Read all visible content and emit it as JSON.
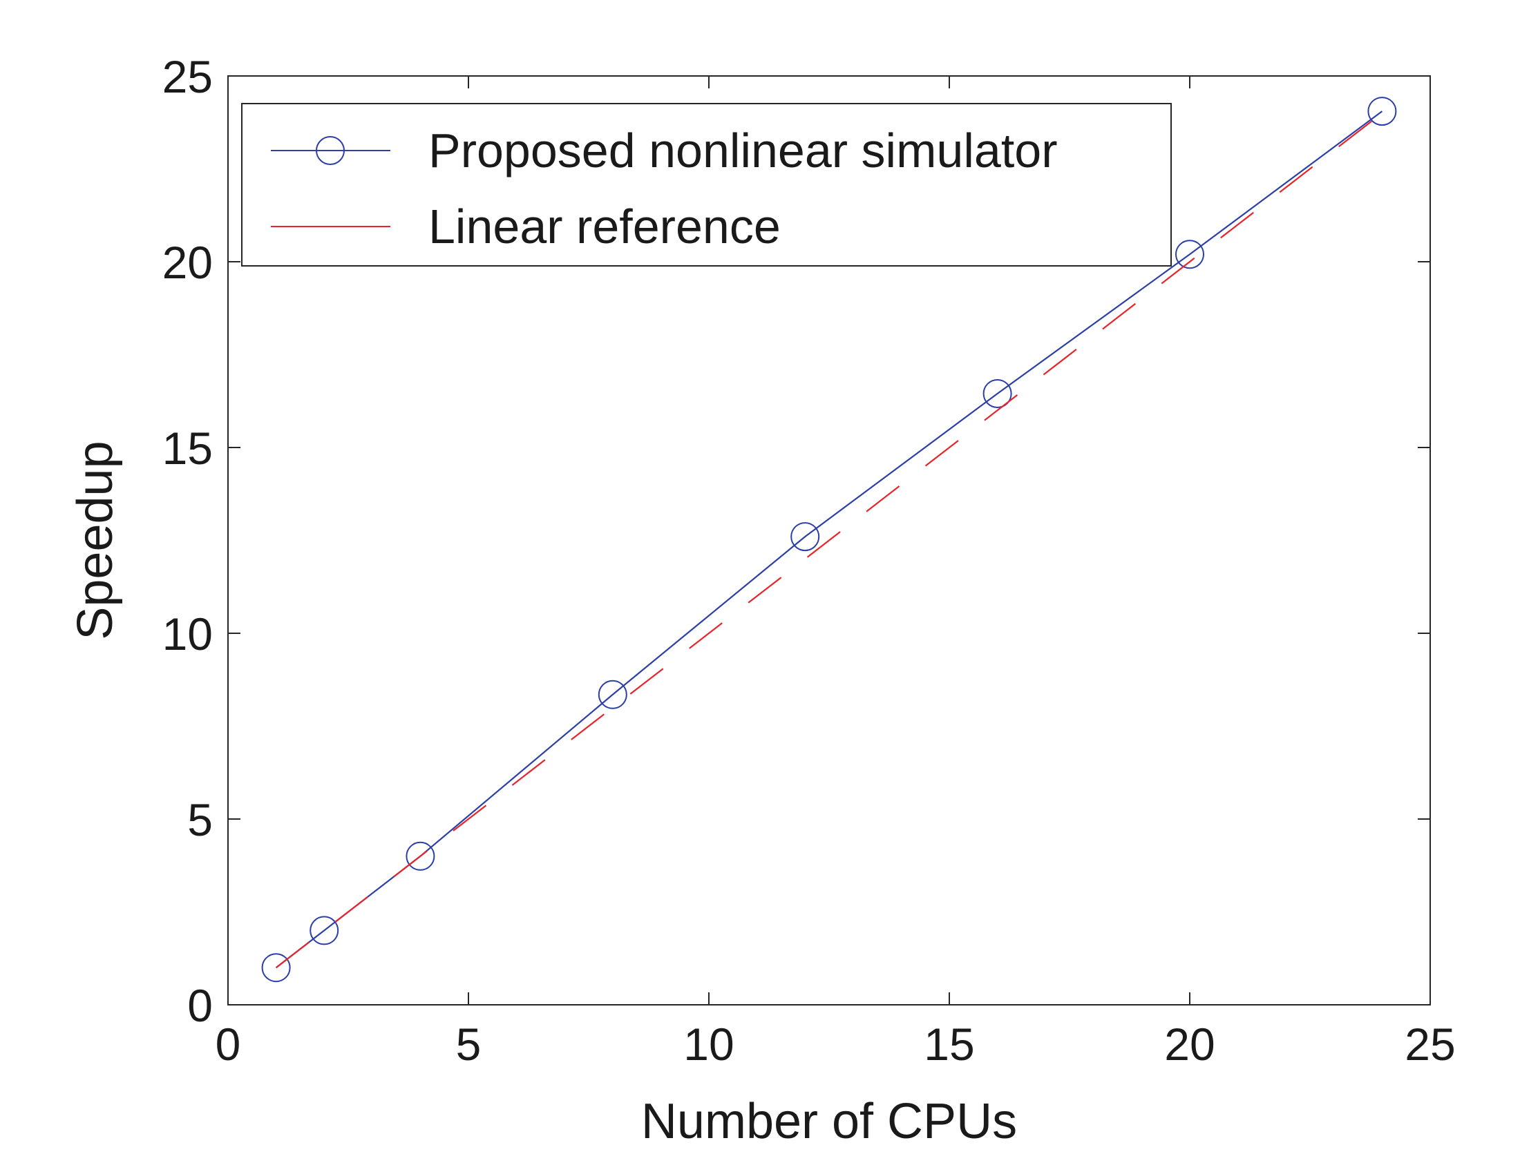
{
  "chart_data": {
    "type": "line",
    "title": "",
    "xlabel": "Number of CPUs",
    "ylabel": "Speedup",
    "xlim": [
      0,
      25
    ],
    "ylim": [
      0,
      25
    ],
    "xticks": [
      0,
      5,
      10,
      15,
      20,
      25
    ],
    "yticks": [
      0,
      5,
      10,
      15,
      20,
      25
    ],
    "grid": false,
    "legend_position": "top-left",
    "series": [
      {
        "name": "Proposed nonlinear simulator",
        "x": [
          1,
          2,
          4,
          8,
          12,
          16,
          20,
          24
        ],
        "y": [
          1.0,
          2.0,
          4.0,
          8.35,
          12.6,
          16.45,
          20.2,
          24.05
        ],
        "color": "#2b3fa8",
        "line_style": "solid",
        "marker": "circle"
      },
      {
        "name": "Linear reference",
        "x": [
          1,
          24
        ],
        "y": [
          1,
          24
        ],
        "color": "#e8232a",
        "line_style": "dashed",
        "marker": "none"
      }
    ]
  }
}
